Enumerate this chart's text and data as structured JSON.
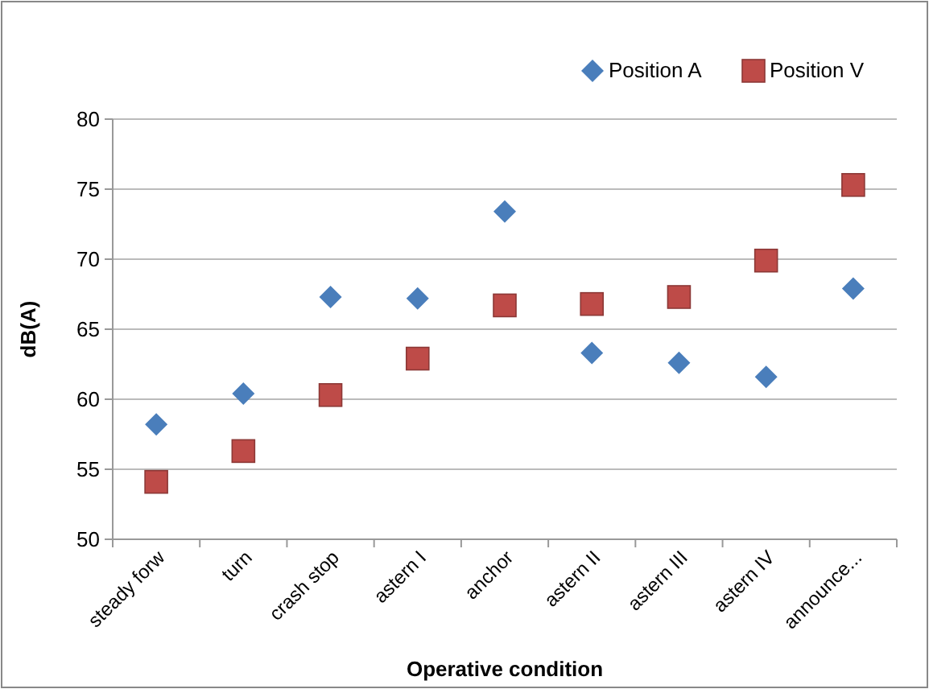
{
  "chart_data": {
    "type": "scatter",
    "xlabel": "Operative condition",
    "ylabel": "dB(A)",
    "categories": [
      "steady forw",
      "turn",
      "crash stop",
      "astern I",
      "anchor",
      "astern II",
      "astern III",
      "astern IV",
      "announce..."
    ],
    "series": [
      {
        "name": "Position A",
        "color": "#4a7ebb",
        "marker": "diamond",
        "values": [
          58.2,
          60.4,
          67.3,
          67.2,
          73.4,
          63.3,
          62.6,
          61.6,
          67.9
        ]
      },
      {
        "name": "Position V",
        "color": "#be4b48",
        "marker": "square",
        "values": [
          54.1,
          56.3,
          60.3,
          62.9,
          66.7,
          66.8,
          67.3,
          69.9,
          75.3
        ]
      }
    ],
    "ylim": [
      50,
      80
    ],
    "yticks": [
      50,
      55,
      60,
      65,
      70,
      75,
      80
    ],
    "grid": "y",
    "legend": "top right"
  }
}
